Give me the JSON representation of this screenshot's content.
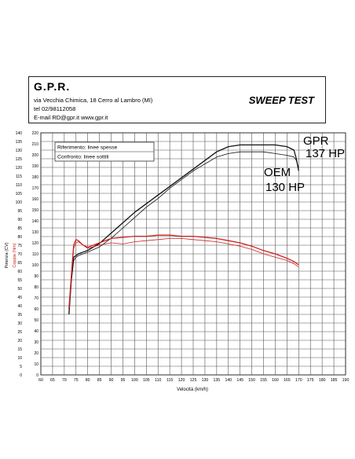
{
  "header": {
    "company": "G.P.R.",
    "address": "via Vecchia Chimica, 18 Cerro al Lambro (MI)",
    "tel": "tel 02/98112058",
    "contact": "E-mail RD@gpr.it  www.gpr.it",
    "title": "SWEEP TEST"
  },
  "legend": {
    "reference": "Riferimento: linee spesse",
    "comparison": "Confronto: linee sottili"
  },
  "annotations": {
    "gpr_name": "GPR",
    "gpr_hp": "137 HP",
    "oem_name": "OEM",
    "oem_hp": "130 HP"
  },
  "chart_data": {
    "type": "line",
    "xlabel": "Velocità (km/h)",
    "ylabel_power": "Potenza (CV)",
    "ylabel_torque": "Coppia (Nm)",
    "xlim": [
      60,
      190
    ],
    "x_ticks": [
      60,
      65,
      70,
      75,
      80,
      85,
      90,
      95,
      100,
      105,
      110,
      115,
      120,
      125,
      130,
      135,
      140,
      145,
      150,
      155,
      160,
      165,
      170,
      175,
      180,
      185,
      190
    ],
    "ylim_power": [
      0,
      140
    ],
    "power_ticks": [
      0,
      5,
      10,
      15,
      20,
      25,
      30,
      35,
      40,
      45,
      50,
      55,
      60,
      65,
      70,
      75,
      80,
      85,
      90,
      95,
      100,
      105,
      110,
      115,
      120,
      125,
      130,
      135,
      140
    ],
    "ylim_torque": [
      0,
      220
    ],
    "torque_ticks": [
      0,
      10,
      20,
      30,
      40,
      50,
      60,
      70,
      80,
      90,
      100,
      110,
      120,
      130,
      140,
      150,
      160,
      170,
      180,
      190,
      200,
      210,
      220
    ],
    "grid": true,
    "colors": {
      "power": "#111111",
      "torque": "#cc2222"
    },
    "series": [
      {
        "name": "GPR",
        "quantity": "power",
        "x": [
          72,
          73,
          74,
          75,
          76,
          78,
          80,
          85,
          90,
          95,
          100,
          105,
          110,
          115,
          120,
          125,
          130,
          135,
          140,
          145,
          150,
          155,
          160,
          165,
          168,
          169,
          170
        ],
        "values": [
          35,
          55,
          68,
          69,
          70,
          71,
          72,
          76,
          82,
          88,
          94,
          99,
          104,
          109,
          114,
          119,
          124,
          129,
          132,
          133,
          133,
          133,
          133,
          132,
          130,
          125,
          118
        ]
      },
      {
        "name": "OEM",
        "quantity": "power",
        "x": [
          72,
          73,
          74,
          75,
          76,
          78,
          80,
          85,
          90,
          95,
          100,
          105,
          110,
          115,
          120,
          125,
          130,
          135,
          140,
          145,
          150,
          155,
          160,
          165,
          168,
          169,
          170
        ],
        "values": [
          36,
          54,
          66,
          68,
          69,
          70,
          71,
          74,
          79,
          85,
          91,
          97,
          102,
          108,
          113,
          118,
          122,
          126,
          128,
          129,
          129,
          129,
          128,
          127,
          126,
          124,
          120
        ]
      },
      {
        "name": "GPR",
        "quantity": "torque",
        "x": [
          72,
          73,
          74,
          75,
          76,
          78,
          80,
          85,
          90,
          95,
          100,
          105,
          110,
          115,
          120,
          125,
          130,
          135,
          140,
          145,
          150,
          155,
          160,
          165,
          168,
          170
        ],
        "values": [
          60,
          90,
          118,
          123,
          122,
          118,
          116,
          120,
          124,
          125,
          126,
          126,
          127,
          127,
          126,
          126,
          125,
          124,
          122,
          120,
          117,
          113,
          110,
          106,
          103,
          100
        ]
      },
      {
        "name": "OEM",
        "quantity": "torque",
        "x": [
          72,
          73,
          74,
          75,
          76,
          78,
          80,
          85,
          90,
          95,
          100,
          105,
          110,
          115,
          120,
          125,
          130,
          135,
          140,
          145,
          150,
          155,
          160,
          165,
          168,
          170
        ],
        "values": [
          62,
          88,
          115,
          120,
          121,
          118,
          115,
          118,
          120,
          119,
          121,
          122,
          123,
          124,
          124,
          123,
          122,
          121,
          119,
          117,
          114,
          110,
          107,
          104,
          101,
          98
        ]
      }
    ]
  }
}
